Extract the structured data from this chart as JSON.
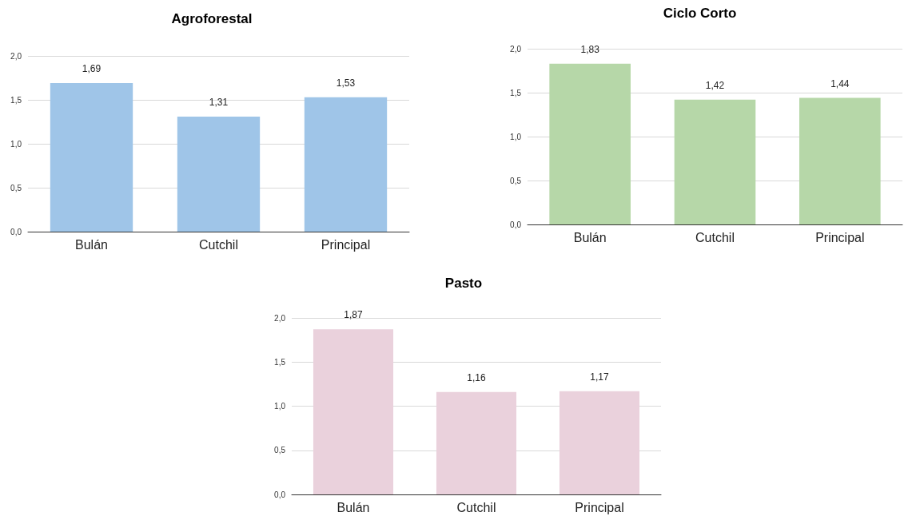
{
  "chart_data": [
    {
      "type": "bar",
      "title": "Agroforestal",
      "categories": [
        "Bulán",
        "Cutchil",
        "Principal"
      ],
      "values": [
        1.69,
        1.31,
        1.53
      ],
      "value_labels": [
        "1,69",
        "1,31",
        "1,53"
      ],
      "color": "#9fc5e8",
      "ylim": [
        0,
        2
      ],
      "yticks": [
        {
          "value": 0,
          "label": "0,0"
        },
        {
          "value": 0.5,
          "label": "0,5"
        },
        {
          "value": 1,
          "label": "1,0"
        },
        {
          "value": 1.5,
          "label": "1,5"
        },
        {
          "value": 2,
          "label": "2,0"
        }
      ],
      "grid": "y"
    },
    {
      "type": "bar",
      "title": "Ciclo Corto",
      "categories": [
        "Bulán",
        "Cutchil",
        "Principal"
      ],
      "values": [
        1.83,
        1.42,
        1.44
      ],
      "value_labels": [
        "1,83",
        "1,42",
        "1,44"
      ],
      "color": "#b6d7a8",
      "ylim": [
        0,
        2
      ],
      "yticks": [
        {
          "value": 0,
          "label": "0,0"
        },
        {
          "value": 0.5,
          "label": "0,5"
        },
        {
          "value": 1,
          "label": "1,0"
        },
        {
          "value": 1.5,
          "label": "1,5"
        },
        {
          "value": 2,
          "label": "2,0"
        }
      ],
      "grid": "y"
    },
    {
      "type": "bar",
      "title": "Pasto",
      "categories": [
        "Bulán",
        "Cutchil",
        "Principal"
      ],
      "values": [
        1.87,
        1.16,
        1.17
      ],
      "value_labels": [
        "1,87",
        "1,16",
        "1,17"
      ],
      "color": "#ead1dc",
      "ylim": [
        0,
        2
      ],
      "yticks": [
        {
          "value": 0,
          "label": "0,0"
        },
        {
          "value": 0.5,
          "label": "0,5"
        },
        {
          "value": 1,
          "label": "1,0"
        },
        {
          "value": 1.5,
          "label": "1,5"
        },
        {
          "value": 2,
          "label": "2,0"
        }
      ],
      "grid": "y"
    }
  ]
}
